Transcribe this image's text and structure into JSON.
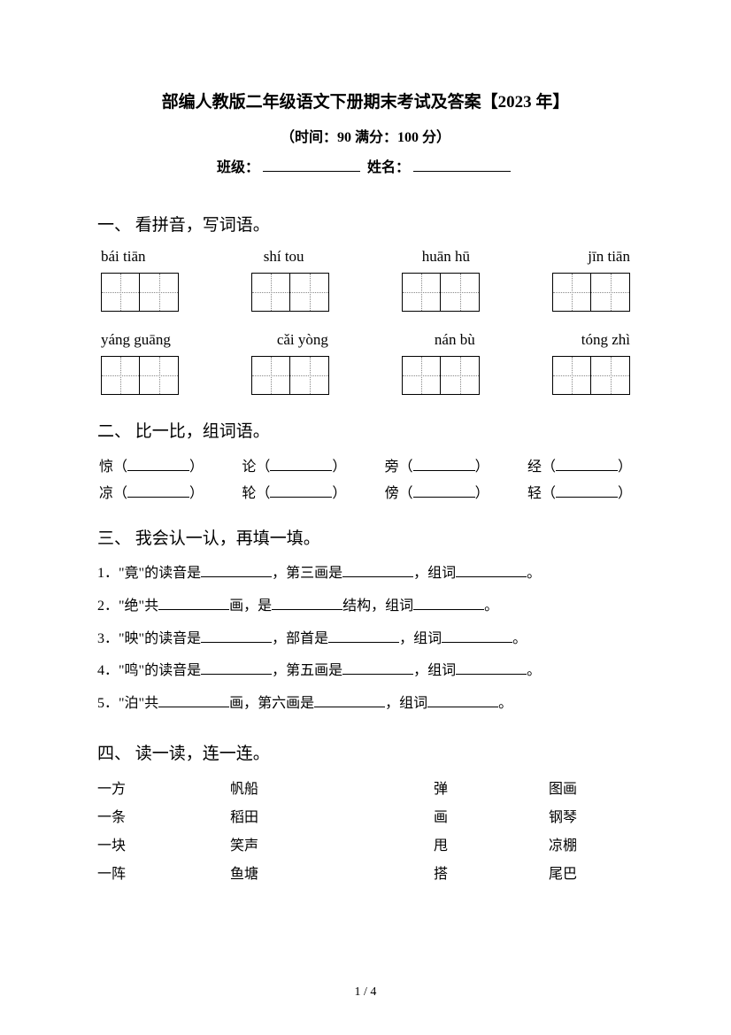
{
  "header": {
    "title": "部编人教版二年级语文下册期末考试及答案【2023 年】",
    "subtitle": "（时间：90   满分：100 分）",
    "class_label": "班级：",
    "name_label": "姓名："
  },
  "section1": {
    "heading": "一、 看拼音，写词语。",
    "row1": [
      "bái   tiān",
      "shí  tou",
      "huān  hū",
      "jīn  tiān"
    ],
    "row2": [
      "yáng guāng",
      "cǎi  yòng",
      "nán   bù",
      "tóng  zhì"
    ]
  },
  "section2": {
    "heading": "二、 比一比，组词语。",
    "row1": [
      "惊",
      "论",
      "旁",
      "经"
    ],
    "row2": [
      "凉",
      "轮",
      "傍",
      "轻"
    ]
  },
  "section3": {
    "heading": "三、 我会认一认，再填一填。",
    "lines": [
      {
        "n": "1．",
        "parts": [
          "\"竟\"的读音是",
          "，第三画是",
          "，组词",
          "。"
        ]
      },
      {
        "n": "2．",
        "parts": [
          "\"绝\"共",
          "画，是",
          "结构，组词",
          "。"
        ]
      },
      {
        "n": "3．",
        "parts": [
          "\"映\"的读音是",
          "，部首是",
          "，组词",
          "。"
        ]
      },
      {
        "n": "4．",
        "parts": [
          "\"鸣\"的读音是",
          "，第五画是",
          "，组词",
          "。"
        ]
      },
      {
        "n": "5．",
        "parts": [
          "\"泊\"共",
          "画，第六画是",
          "，组词",
          "。"
        ]
      }
    ]
  },
  "section4": {
    "heading": "四、 读一读，连一连。",
    "rows": [
      [
        "一方",
        "帆船",
        "弹",
        "图画"
      ],
      [
        "一条",
        "稻田",
        "画",
        "钢琴"
      ],
      [
        "一块",
        "笑声",
        "甩",
        "凉棚"
      ],
      [
        "一阵",
        "鱼塘",
        "搭",
        "尾巴"
      ]
    ]
  },
  "footer": "1 / 4"
}
